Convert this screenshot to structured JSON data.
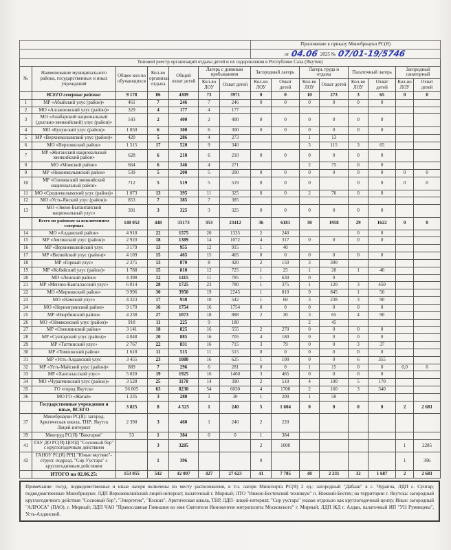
{
  "header": {
    "appendix_line1": "Приложение к приказу Минобрнауки РС(Я)",
    "appendix_from": "от",
    "appendix_date_hand": "04.06",
    "appendix_year": "2025 №",
    "appendix_number_hand": "07/01-19/5746",
    "title": "Типовой реестр организаций отдыха детей и их оздоровления в Республике Саха (Якутия)",
    "ink_color": "#2a38a8"
  },
  "table": {
    "col_headers": {
      "num": "№",
      "name": "Наименование муниципального района, государственных и иных учреждений",
      "total_students": "Общее кол-во обучающихся",
      "org_count": "Кол-во организаций отдыха",
      "total_children": "Общий охват детей"
    },
    "groups": [
      "Лагерь с дневным пребыванием",
      "Загородный лагерь",
      "Лагерь труда и отдыха",
      "Палаточный лагерь",
      "Загородный санаторный"
    ],
    "sub_k": "Кол-во ЛОУ",
    "sub_o": "Охват детей",
    "rows": [
      {
        "num": "",
        "name": "ВСЕГО северные районы:",
        "cls": "north-total",
        "v": [
          "9 178",
          "86",
          "4309",
          "73",
          "3971",
          "0",
          "0",
          "10",
          "273",
          "3",
          "65",
          "0",
          "0"
        ]
      },
      {
        "num": "1",
        "name": "МР «Абыйский улус (район)»",
        "cls": "",
        "v": [
          "461",
          "7",
          "246",
          "7",
          "246",
          "0",
          "0",
          "0",
          "0",
          "0",
          "0",
          "",
          ""
        ]
      },
      {
        "num": "2",
        "name": "МО «Аллаиховский улус (район)»",
        "cls": "",
        "v": [
          "329",
          "4",
          "177",
          "4",
          "177",
          "",
          "",
          "",
          "",
          "",
          "",
          "",
          ""
        ]
      },
      {
        "num": "3",
        "name": "МО «Анабарский национальный (долгано-эвенкийский) улус (район)»",
        "cls": "",
        "v": [
          "543",
          "2",
          "400",
          "2",
          "400",
          "0",
          "0",
          "0",
          "0",
          "0",
          "0",
          "",
          ""
        ]
      },
      {
        "num": "4",
        "name": "МО «Булунский улус (район)»",
        "cls": "",
        "v": [
          "1 050",
          "6",
          "300",
          "6",
          "300",
          "0",
          "0",
          "0",
          "0",
          "0",
          "0",
          "",
          ""
        ]
      },
      {
        "num": "5",
        "name": "МР «Верхнеколымский улус (район)»",
        "cls": "",
        "v": [
          "420",
          "5",
          "286",
          "4",
          "273",
          "",
          "",
          "1",
          "13",
          "",
          "",
          "",
          ""
        ]
      },
      {
        "num": "6",
        "name": "МО «Верхоянский район»",
        "cls": "",
        "v": [
          "1 515",
          "17",
          "520",
          "9",
          "340",
          "",
          "",
          "5",
          "115",
          "3",
          "65",
          "",
          ""
        ]
      },
      {
        "num": "7",
        "name": "МР «Жиганский национальный эвенкийский район»",
        "cls": "",
        "v": [
          "628",
          "6",
          "210",
          "6",
          "210",
          "0",
          "0",
          "0",
          "0",
          "0",
          "0",
          "",
          ""
        ]
      },
      {
        "num": "8",
        "name": "МО «Момский район»",
        "cls": "",
        "v": [
          "664",
          "6",
          "346",
          "4",
          "271",
          "",
          "",
          "2",
          "75",
          "0",
          "0",
          "",
          ""
        ]
      },
      {
        "num": "9",
        "name": "МР «Нижнеколымский район»",
        "cls": "",
        "v": [
          "539",
          "5",
          "200",
          "5",
          "200",
          "0",
          "0",
          "0",
          "0",
          "0",
          "0",
          "0",
          "0"
        ]
      },
      {
        "num": "10",
        "name": "МР «Оленекский эвенкийский национальный район»",
        "cls": "",
        "v": [
          "712",
          "5",
          "519",
          "5",
          "519",
          "0",
          "0",
          "0",
          "",
          "0",
          "0",
          "0",
          "0"
        ]
      },
      {
        "num": "11",
        "name": "МО «Среднеколымский улус (район)»",
        "cls": "",
        "v": [
          "1 073",
          "13",
          "395",
          "11",
          "325",
          "0",
          "0",
          "2",
          "70",
          "0",
          "0",
          "",
          ""
        ]
      },
      {
        "num": "12",
        "name": "МО «Усть-Янский улус (район)»",
        "cls": "",
        "v": [
          "853",
          "7",
          "385",
          "7",
          "385",
          "",
          "",
          "",
          "",
          "",
          "",
          "",
          ""
        ]
      },
      {
        "num": "13",
        "name": "МО «Эвено-Бытантайский национальный улус»",
        "cls": "",
        "v": [
          "391",
          "3",
          "325",
          "3",
          "325",
          "0",
          "0",
          "0",
          "0",
          "0",
          "0",
          "",
          ""
        ]
      },
      {
        "num": "",
        "name": "Всего по районам за исключением северных",
        "cls": "subtotal",
        "v": [
          "140 052",
          "448",
          "33173",
          "353",
          "23412",
          "36",
          "6181",
          "30",
          "1958",
          "29",
          "1622",
          "0",
          "0"
        ]
      },
      {
        "num": "14",
        "name": "МО «Алданский район»",
        "cls": "",
        "v": [
          "4 918",
          "22",
          "1575",
          "20",
          "1335",
          "2",
          "240",
          "",
          "",
          "0",
          "0",
          "",
          ""
        ]
      },
      {
        "num": "15",
        "name": "МР «Амгинский улус (район)»",
        "cls": "",
        "v": [
          "2 920",
          "18",
          "1389",
          "14",
          "1072",
          "4",
          "317",
          "0",
          "0",
          "0",
          "0",
          "",
          ""
        ]
      },
      {
        "num": "16",
        "name": "МР «Верхневилюйский улус",
        "cls": "",
        "v": [
          "3 179",
          "13",
          "955",
          "12",
          "915",
          "1",
          "40",
          "",
          "",
          "",
          "",
          "",
          ""
        ]
      },
      {
        "num": "17",
        "name": "МР «Вилюйский улус (район)»",
        "cls": "",
        "v": [
          "4 109",
          "15",
          "465",
          "15",
          "465",
          "0",
          "0",
          "0",
          "0",
          "0",
          "0",
          "",
          ""
        ]
      },
      {
        "num": "18",
        "name": "МР «Горный улус»",
        "cls": "",
        "v": [
          "2 375",
          "13",
          "870",
          "8",
          "420",
          "2",
          "150",
          "3",
          "300",
          "",
          "",
          "",
          ""
        ]
      },
      {
        "num": "19",
        "name": "МР «Кобяйский улус (район)»",
        "cls": "",
        "v": [
          "1 788",
          "15",
          "810",
          "12",
          "725",
          "1",
          "25",
          "1",
          "20",
          "1",
          "40",
          "",
          ""
        ]
      },
      {
        "num": "20",
        "name": "МО «Ленский район»",
        "cls": "",
        "v": [
          "4 398",
          "12",
          "1415",
          "11",
          "785",
          "1",
          "630",
          "0",
          "0",
          "",
          "",
          "",
          ""
        ]
      },
      {
        "num": "21",
        "name": "МР «Мегино-Кангаласский улус»",
        "cls": "",
        "v": [
          "6 014",
          "28",
          "1725",
          "23",
          "780",
          "1",
          "375",
          "1",
          "120",
          "3",
          "450",
          "",
          ""
        ]
      },
      {
        "num": "22",
        "name": "МО «Мирнинский район»",
        "cls": "",
        "v": [
          "9 996",
          "30",
          "3950",
          "19",
          "2245",
          "1",
          "810",
          "9",
          "845",
          "1",
          "50",
          "",
          ""
        ]
      },
      {
        "num": "23",
        "name": "МО «Намский улус»",
        "cls": "",
        "v": [
          "4 323",
          "17",
          "930",
          "10",
          "542",
          "1",
          "60",
          "3",
          "238",
          "3",
          "90",
          "",
          ""
        ]
      },
      {
        "num": "24",
        "name": "МО «Нерюнгринский район»",
        "cls": "",
        "v": [
          "9 170",
          "16",
          "1754",
          "16",
          "1754",
          "0",
          "0",
          "0",
          "0",
          "0",
          "0",
          "",
          ""
        ]
      },
      {
        "num": "25",
        "name": "МР «Нюрбинский район»",
        "cls": "",
        "v": [
          "4 238",
          "27",
          "1073",
          "18",
          "888",
          "2",
          "30",
          "3",
          "65",
          "4",
          "90",
          "",
          ""
        ]
      },
      {
        "num": "26",
        "name": "МО «Оймяконский улус (район)»",
        "cls": "",
        "v": [
          "918",
          "11",
          "225",
          "9",
          "180",
          "",
          "",
          "2",
          "45",
          "",
          "",
          "",
          ""
        ]
      },
      {
        "num": "27",
        "name": "МР «Олекминский район»",
        "cls": "",
        "v": [
          "3 141",
          "18",
          "825",
          "16",
          "555",
          "2",
          "270",
          "0",
          "0",
          "0",
          "0",
          "",
          ""
        ]
      },
      {
        "num": "28",
        "name": "МР «Сунтарский улус (район)»",
        "cls": "",
        "v": [
          "4 048",
          "20",
          "885",
          "16",
          "705",
          "4",
          "180",
          "0",
          "0",
          "0",
          "0",
          "",
          ""
        ]
      },
      {
        "num": "29",
        "name": "МР «Таттинский улус»",
        "cls": "",
        "v": [
          "2 767",
          "22",
          "831",
          "16",
          "715",
          "3",
          "79",
          "0",
          "0",
          "3",
          "37",
          "",
          ""
        ]
      },
      {
        "num": "30",
        "name": "МР «Томпонский район»",
        "cls": "",
        "v": [
          "1 618",
          "11",
          "515",
          "11",
          "515",
          "0",
          "0",
          "0",
          "0",
          "0",
          "0",
          "",
          ""
        ]
      },
      {
        "num": "31",
        "name": "МР «Усть-Алданский улус",
        "cls": "",
        "v": [
          "3 455",
          "23",
          "1080",
          "16",
          "625",
          "1",
          "100",
          "0",
          "0",
          "6",
          "355",
          "",
          ""
        ]
      },
      {
        "num": "32",
        "name": "МР «Усть-Майский улус (район)»",
        "cls": "",
        "v": [
          "889",
          "7",
          "296",
          "6",
          "281",
          "0",
          "0",
          "1",
          "15",
          "0",
          "0",
          "0,0",
          "0"
        ]
      },
      {
        "num": "33",
        "name": "МР «Хангаласский улус»",
        "cls": "",
        "v": [
          "5 020",
          "19",
          "1925",
          "16",
          "1460",
          "3",
          "465",
          "0",
          "0",
          "0",
          "0",
          "",
          ""
        ]
      },
      {
        "num": "34",
        "name": "МО «Чурапчинский улус (район)»",
        "cls": "",
        "v": [
          "3 528",
          "25",
          "1170",
          "14",
          "390",
          "2",
          "510",
          "4",
          "100",
          "5",
          "170",
          "",
          ""
        ]
      },
      {
        "num": "35",
        "name": "ГО «город Якутск»",
        "cls": "",
        "v": [
          "56 005",
          "63",
          "8230",
          "54",
          "6030",
          "4",
          "1700",
          "2",
          "160",
          "3",
          "340",
          "",
          ""
        ]
      },
      {
        "num": "36",
        "name": "МО ГО «Жатай»",
        "cls": "",
        "v": [
          "1 235",
          "3",
          "280",
          "1",
          "30",
          "1",
          "200",
          "1",
          "50",
          "",
          "",
          "",
          ""
        ]
      },
      {
        "num": "",
        "name": "Государственные учреждения и иные, ВСЕГО",
        "cls": "gos-total",
        "v": [
          "3 825",
          "8",
          "4 525",
          "1",
          "240",
          "5",
          "1 604",
          "0",
          "0",
          "0",
          "0",
          "2",
          "2 681"
        ]
      },
      {
        "num": "37",
        "name": "Минобрнауки РС(Я): загород. Арктическая школа, ТНР; Якутск Лицей-интернат",
        "cls": "",
        "v": [
          "2 390",
          "3",
          "460",
          "1",
          "240",
          "2",
          "220",
          "",
          "",
          "",
          "",
          "",
          ""
        ]
      },
      {
        "num": "39",
        "name": "Минтруд РС(Я) \"Виктория\"",
        "cls": "",
        "v": [
          "53",
          "1",
          "384",
          "0",
          "0",
          "1",
          "384",
          "",
          "",
          "",
          "",
          "",
          ""
        ]
      },
      {
        "num": "41",
        "name": "ГАУ ДО РС(Я) ЦООД \"Сосновый бор\" с круглогодичным действием",
        "cls": "",
        "v": [
          "",
          "3",
          "3285",
          "",
          "",
          "2",
          "1000",
          "",
          "",
          "",
          "",
          "1",
          "2285"
        ]
      },
      {
        "num": "42",
        "name": "ГАНОУ РС(Я) РРЦ \"Юные якутяне\"- структ. подразд. \"Сир Уустара\" с круглогодичным действием",
        "cls": "",
        "v": [
          "",
          "1",
          "396",
          "",
          "",
          "0",
          "",
          "",
          "",
          "",
          "",
          "1",
          "396"
        ]
      },
      {
        "num": "",
        "name": "ИТОГО на 02.06.25:",
        "cls": "itogo",
        "v": [
          "153 055",
          "542",
          "42 007",
          "427",
          "27 623",
          "41",
          "7 785",
          "40",
          "2 231",
          "32",
          "1 687",
          "2",
          "2 681"
        ]
      }
    ]
  },
  "note": "Примечание: госуд. подведомственные и иные лагеря включены по месту расположения, в т.ч. лагеря Минспорта РС(Я) 2 ед.: загородный \"Дабаан\" в с. Чурапча, ЛДП с. Сунтар; подведомственные Минобрнауки: ЛДП Верхневилюйский лицей-интернат; палаточный г. Мирный; ЛТО \"Нижне-Бестяхский техникум\" п. Нижний-Бестях; на территории г. Якутска: загородный круглогодичного действия \"Сосновый бор\", \"Энергетик\", \"Кэскил\", Арктическая школа, ТНР, ЛДП- лицей-интернат, \"Сир уустара\" указан отдельно как круглогодичный центр; Иные: загородный \"АЛРОСА\" (ПАО), г. Мирный; ЛДП ЧАО \"Православная Гимназия во имя Святителя Иннокентия митрополита Московского\" г. Мирный; ЛДП ЖД г. Алдан, палаточный ИП \"УН Румянцева\", Усть-Алданский."
}
